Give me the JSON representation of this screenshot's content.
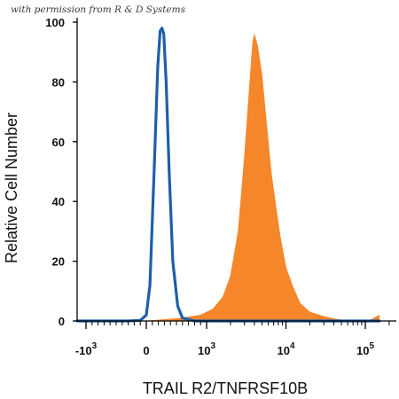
{
  "watermark": "with permission from R & D Systems",
  "chart_data": {
    "type": "area",
    "title": "",
    "xlabel": "TRAIL R2/TNFRSF10B",
    "ylabel": "Relative Cell Number",
    "x_scale": "biexponential (log with linear region around 0)",
    "x_ticks": [
      {
        "value": -1000,
        "label_base": "-10",
        "label_exp": "3"
      },
      {
        "value": 0,
        "label_base": "0",
        "label_exp": ""
      },
      {
        "value": 1000,
        "label_base": "10",
        "label_exp": "3"
      },
      {
        "value": 10000,
        "label_base": "10",
        "label_exp": "4"
      },
      {
        "value": 100000,
        "label_base": "10",
        "label_exp": "5"
      }
    ],
    "ylim": [
      0,
      100
    ],
    "y_ticks": [
      0,
      20,
      40,
      60,
      80,
      100
    ],
    "grid": false,
    "series": [
      {
        "style": "filled area",
        "color": "#F5862A",
        "x": [
          -1500,
          -300,
          0,
          300,
          600,
          900,
          1200,
          1600,
          2000,
          2500,
          3000,
          3500,
          3800,
          4000,
          4400,
          5000,
          5700,
          6500,
          7500,
          8500,
          10000,
          12000,
          15000,
          20000,
          30000,
          45000,
          70000,
          100000,
          120000,
          150000
        ],
        "values": [
          0,
          0,
          0,
          0.5,
          1,
          2,
          4,
          8,
          15,
          30,
          55,
          80,
          93,
          96,
          92,
          82,
          66,
          50,
          38,
          28,
          18,
          12,
          6,
          3,
          1.5,
          0.5,
          0,
          0,
          0.5,
          2
        ]
      },
      {
        "style": "line",
        "color": "#1D5FA8",
        "x": [
          -1500,
          -300,
          -100,
          0,
          60,
          130,
          190,
          230,
          260,
          290,
          330,
          380,
          440,
          520,
          600,
          800,
          3000,
          150000
        ],
        "values": [
          0,
          0,
          0.2,
          2,
          12,
          50,
          85,
          97,
          98,
          96,
          80,
          50,
          20,
          5,
          1,
          0,
          0,
          0
        ]
      }
    ]
  }
}
